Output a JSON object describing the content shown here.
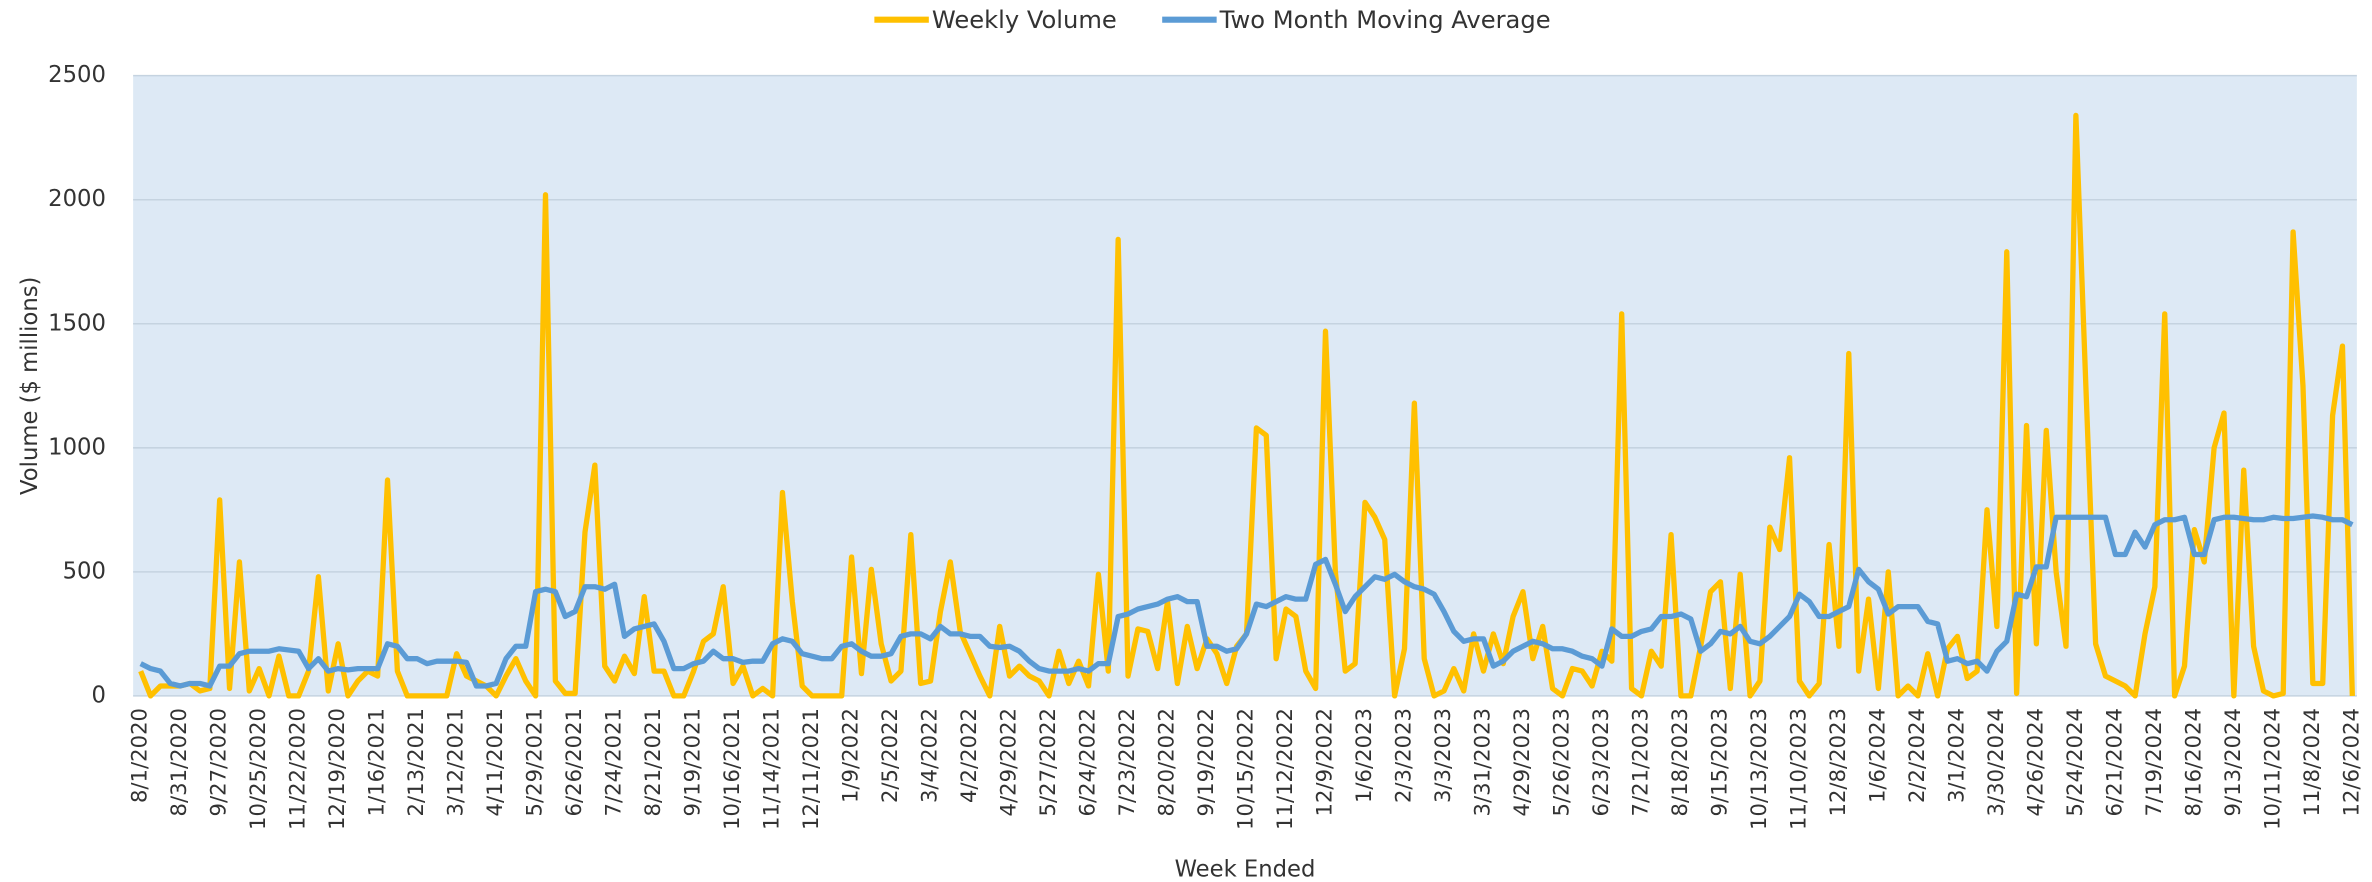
{
  "chart_data": {
    "type": "line",
    "y_label": "Volume ($ millions)",
    "x_label": "Week Ended",
    "categories": [
      "8/1/2020",
      null,
      null,
      null,
      "8/31/2020",
      null,
      null,
      null,
      "9/27/2020",
      null,
      null,
      null,
      "10/25/2020",
      null,
      null,
      null,
      "11/22/2020",
      null,
      null,
      null,
      "12/19/2020",
      null,
      null,
      null,
      "1/16/2021",
      null,
      null,
      null,
      "2/13/2021",
      null,
      null,
      null,
      "3/12/2021",
      null,
      null,
      null,
      "4/11/2021",
      null,
      null,
      null,
      "5/29/2021",
      null,
      null,
      null,
      "6/26/2021",
      null,
      null,
      null,
      "7/24/2021",
      null,
      null,
      null,
      "8/21/2021",
      null,
      null,
      null,
      "9/19/2021",
      null,
      null,
      null,
      "10/16/2021",
      null,
      null,
      null,
      "11/14/2021",
      null,
      null,
      null,
      "12/11/2021",
      null,
      null,
      null,
      "1/9/2022",
      null,
      null,
      null,
      "2/5/2022",
      null,
      null,
      null,
      "3/4/2022",
      null,
      null,
      null,
      "4/2/2022",
      null,
      null,
      null,
      "4/29/2022",
      null,
      null,
      null,
      "5/27/2022",
      null,
      null,
      null,
      "6/24/2022",
      null,
      null,
      null,
      "7/23/2022",
      null,
      null,
      null,
      "8/20/2022",
      null,
      null,
      null,
      "9/19/2022",
      null,
      null,
      null,
      "10/15/2022",
      null,
      null,
      null,
      "11/12/2022",
      null,
      null,
      null,
      "12/9/2022",
      null,
      null,
      null,
      "1/6/2023",
      null,
      null,
      null,
      "2/3/2023",
      null,
      null,
      null,
      "3/3/2023",
      null,
      null,
      null,
      "3/31/2023",
      null,
      null,
      null,
      "4/29/2023",
      null,
      null,
      null,
      "5/26/2023",
      null,
      null,
      null,
      "6/23/2023",
      null,
      null,
      null,
      "7/21/2023",
      null,
      null,
      null,
      "8/18/2023",
      null,
      null,
      null,
      "9/15/2023",
      null,
      null,
      null,
      "10/13/2023",
      null,
      null,
      null,
      "11/10/2023",
      null,
      null,
      null,
      "12/8/2023",
      null,
      null,
      null,
      "1/6/2024",
      null,
      null,
      null,
      "2/2/2024",
      null,
      null,
      null,
      "3/1/2024",
      null,
      null,
      null,
      "3/30/2024",
      null,
      null,
      null,
      "4/26/2024",
      null,
      null,
      null,
      "5/24/2024",
      null,
      null,
      null,
      "6/21/2024",
      null,
      null,
      null,
      "7/19/2024",
      null,
      null,
      null,
      "8/16/2024",
      null,
      null,
      null,
      "9/13/2024",
      null,
      null,
      null,
      "10/11/2024",
      null,
      null,
      null,
      "11/8/2024",
      null,
      null,
      null,
      "12/6/2024"
    ],
    "series": [
      {
        "name": "Weekly Volume",
        "color": "#ffc000",
        "values": [
          100,
          0,
          40,
          40,
          40,
          50,
          20,
          30,
          790,
          30,
          540,
          20,
          110,
          0,
          160,
          0,
          0,
          100,
          480,
          20,
          210,
          0,
          60,
          100,
          80,
          870,
          100,
          0,
          0,
          0,
          0,
          0,
          170,
          80,
          60,
          40,
          0,
          80,
          150,
          60,
          0,
          2020,
          60,
          10,
          10,
          660,
          930,
          120,
          60,
          160,
          90,
          400,
          100,
          100,
          0,
          0,
          100,
          220,
          250,
          440,
          50,
          120,
          0,
          30,
          0,
          820,
          380,
          40,
          0,
          0,
          0,
          0,
          560,
          90,
          510,
          210,
          60,
          100,
          650,
          50,
          60,
          340,
          540,
          260,
          170,
          80,
          0,
          280,
          80,
          120,
          80,
          60,
          0,
          180,
          50,
          140,
          40,
          490,
          100,
          1840,
          80,
          270,
          260,
          110,
          380,
          50,
          280,
          110,
          230,
          170,
          50,
          200,
          250,
          1080,
          1050,
          150,
          350,
          320,
          100,
          30,
          1470,
          500,
          100,
          130,
          780,
          720,
          630,
          0,
          190,
          1180,
          150,
          0,
          20,
          110,
          20,
          250,
          100,
          250,
          130,
          320,
          420,
          150,
          280,
          30,
          0,
          110,
          100,
          40,
          180,
          140,
          1540,
          30,
          0,
          180,
          120,
          650,
          0,
          0,
          200,
          420,
          460,
          30,
          490,
          0,
          60,
          680,
          590,
          960,
          60,
          0,
          50,
          610,
          200,
          1380,
          100,
          390,
          30,
          500,
          0,
          40,
          0,
          170,
          0,
          190,
          240,
          70,
          100,
          750,
          280,
          1790,
          10,
          1090,
          210,
          1070,
          500,
          200,
          2340,
          1260,
          210,
          80,
          60,
          40,
          0,
          250,
          440,
          1540,
          0,
          120,
          670,
          540,
          1000,
          1140,
          0,
          910,
          200,
          20,
          0,
          10,
          1870,
          1250,
          50,
          50,
          1130,
          1410,
          0
        ]
      },
      {
        "name": "Two Month Moving Average",
        "color": "#5b9bd5",
        "values": [
          130,
          110,
          100,
          50,
          40,
          50,
          50,
          40,
          120,
          120,
          170,
          180,
          180,
          180,
          190,
          185,
          180,
          110,
          150,
          100,
          110,
          105,
          110,
          110,
          110,
          210,
          200,
          150,
          150,
          130,
          140,
          140,
          140,
          135,
          40,
          40,
          50,
          150,
          200,
          200,
          420,
          430,
          420,
          320,
          340,
          440,
          440,
          430,
          450,
          240,
          270,
          280,
          290,
          220,
          110,
          110,
          130,
          140,
          180,
          150,
          150,
          135,
          140,
          140,
          210,
          230,
          220,
          170,
          160,
          150,
          150,
          200,
          210,
          180,
          160,
          160,
          170,
          240,
          250,
          250,
          230,
          280,
          250,
          250,
          240,
          240,
          200,
          195,
          200,
          180,
          140,
          110,
          100,
          100,
          100,
          110,
          100,
          130,
          130,
          320,
          330,
          350,
          360,
          370,
          390,
          400,
          380,
          380,
          200,
          200,
          180,
          190,
          250,
          370,
          360,
          380,
          400,
          390,
          390,
          530,
          550,
          450,
          340,
          400,
          440,
          480,
          470,
          490,
          460,
          440,
          430,
          410,
          340,
          260,
          220,
          230,
          230,
          120,
          140,
          180,
          200,
          220,
          210,
          190,
          190,
          180,
          160,
          150,
          120,
          270,
          240,
          240,
          260,
          270,
          320,
          320,
          330,
          310,
          180,
          210,
          260,
          250,
          280,
          220,
          210,
          240,
          280,
          320,
          410,
          380,
          320,
          320,
          340,
          360,
          510,
          460,
          430,
          330,
          360,
          360,
          360,
          300,
          290,
          140,
          150,
          130,
          140,
          100,
          180,
          220,
          410,
          400,
          520,
          520,
          720,
          720,
          720,
          720,
          720,
          720,
          570,
          570,
          660,
          600,
          690,
          710,
          710,
          720,
          570,
          570,
          710,
          720,
          720,
          715,
          710,
          710,
          720,
          715,
          715,
          720,
          725,
          720,
          710,
          710,
          690
        ]
      }
    ],
    "ylim": [
      0,
      2500
    ],
    "yticks": [
      0,
      500,
      1000,
      1500,
      2000,
      2500
    ],
    "grid": true,
    "legend": "top"
  }
}
